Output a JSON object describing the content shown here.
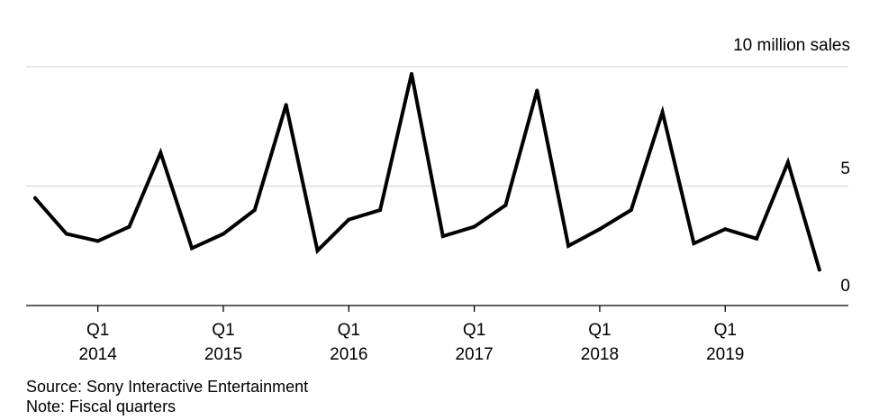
{
  "chart_data": {
    "type": "line",
    "title": "",
    "ylabel": "10 million sales",
    "xlabel": "",
    "ylim": [
      0,
      10
    ],
    "y_ticks": [
      0,
      5,
      10
    ],
    "y_tick_labels": [
      "0",
      "5"
    ],
    "x_quarter_label": "Q1",
    "x_year_labels": [
      "2014",
      "2015",
      "2016",
      "2017",
      "2018",
      "2019"
    ],
    "x_label_quarter_indices": [
      2,
      6,
      10,
      14,
      18,
      22
    ],
    "series": [
      {
        "name": "Sales",
        "color": "#000000",
        "values": [
          4.5,
          3.0,
          2.7,
          3.3,
          6.4,
          2.4,
          3.0,
          4.0,
          8.4,
          2.3,
          3.6,
          4.0,
          9.7,
          2.9,
          3.3,
          4.2,
          9.0,
          2.5,
          3.2,
          4.0,
          8.1,
          2.6,
          3.2,
          2.8,
          6.0,
          1.5
        ]
      }
    ]
  },
  "footer": {
    "source": "Source: Sony Interactive Entertainment",
    "note": "Note: Fiscal quarters"
  }
}
